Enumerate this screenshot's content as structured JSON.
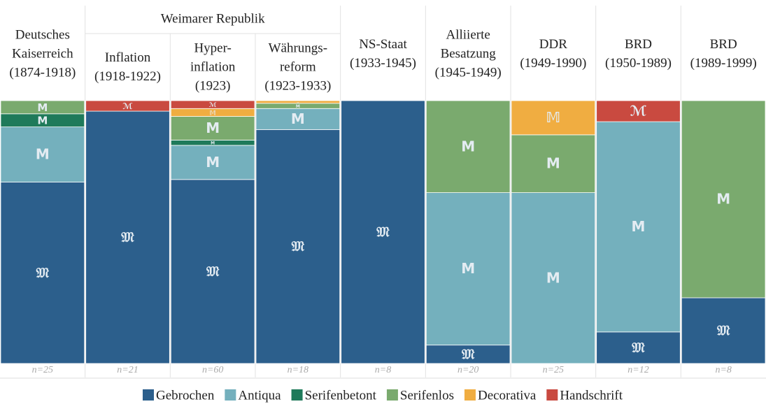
{
  "chart_data": {
    "type": "stacked_bar_100",
    "categories": [
      [
        "Deutsches",
        "Kaiserreich",
        "(1874-1918)"
      ],
      [
        "Inflation",
        "(1918-1922)"
      ],
      [
        "Hyper-",
        "inflation",
        "(1923)"
      ],
      [
        "Währungs-",
        "reform",
        "(1923-1933)"
      ],
      [
        "NS-Staat",
        "(1933-1945)"
      ],
      [
        "Alliierte",
        "Besatzung",
        "(1945-1949)"
      ],
      [
        "DDR",
        "(1949-1990)"
      ],
      [
        "BRD",
        "(1950-1989)"
      ],
      [
        "BRD",
        "(1989-1999)"
      ]
    ],
    "groups": [
      null,
      "Weimarer Republik",
      "Weimarer Republik",
      "Weimarer Republik",
      null,
      null,
      null,
      null,
      null
    ],
    "sample_sizes": [
      "n=25",
      "n=21",
      "n=60",
      "n=18",
      "n=8",
      "n=20",
      "n=25",
      "n=12",
      "n=8"
    ],
    "ylim": [
      0,
      100
    ],
    "series": [
      {
        "name": "Gebrochen",
        "glyph": "𝔐",
        "color": "#2c5f8c",
        "values": [
          69,
          96,
          70,
          89,
          100,
          7,
          0,
          12,
          25
        ]
      },
      {
        "name": "Antiqua",
        "glyph": "M",
        "color": "#74b0bd",
        "values": [
          21,
          0,
          13,
          8,
          0,
          58,
          65,
          80,
          0
        ]
      },
      {
        "name": "Serifenbetont",
        "glyph": "M",
        "color": "#1f7a5a",
        "values": [
          5,
          0,
          2,
          0,
          0,
          0,
          0,
          0,
          0
        ]
      },
      {
        "name": "Serifenlos",
        "glyph": "M",
        "color": "#7aaa6e",
        "values": [
          5,
          0,
          9,
          2,
          0,
          35,
          22,
          0,
          75
        ]
      },
      {
        "name": "Decorativa",
        "glyph": "𝕄",
        "color": "#f0ad41",
        "values": [
          0,
          0,
          3,
          1,
          0,
          0,
          13,
          0,
          0
        ]
      },
      {
        "name": "Handschrift",
        "glyph": "ℳ",
        "color": "#c94a40",
        "values": [
          0,
          4,
          3,
          0,
          0,
          0,
          0,
          8,
          0
        ]
      }
    ]
  }
}
